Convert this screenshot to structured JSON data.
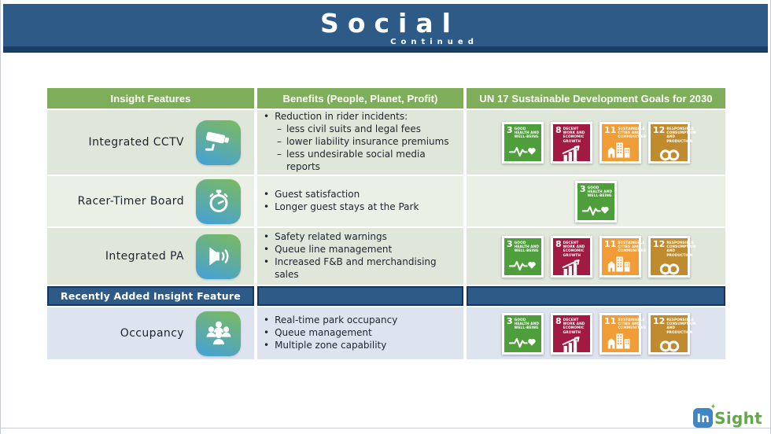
{
  "slide": {
    "title": "Social",
    "subtitle": "Continued"
  },
  "table": {
    "headers": [
      {
        "label": "Insight Features"
      },
      {
        "label": "Benefits (People, Planet, Profit)"
      },
      {
        "label": "UN 17 Sustainable Development Goals for 2030"
      }
    ],
    "rows": [
      {
        "feature": "Integrated CCTV",
        "icon": "cctv-camera-icon",
        "benefits": [
          {
            "text": "Reduction in rider incidents:",
            "subs": [
              "less civil suits and legal fees",
              "lower liability insurance premiums",
              "less undesirable social media reports"
            ]
          }
        ],
        "sdgs": [
          "3",
          "8",
          "11",
          "12"
        ]
      },
      {
        "feature": "Racer-Timer Board",
        "icon": "stopwatch-icon",
        "benefits": [
          {
            "text": "Guest satisfaction",
            "subs": []
          },
          {
            "text": "Longer guest stays at the Park",
            "subs": []
          }
        ],
        "sdgs": [
          "3"
        ]
      },
      {
        "feature": "Integrated PA",
        "icon": "speaker-icon",
        "benefits": [
          {
            "text": "Safety related warnings",
            "subs": []
          },
          {
            "text": "Queue line management",
            "subs": []
          },
          {
            "text": "Increased F&B and merchandising sales",
            "subs": []
          }
        ],
        "sdgs": [
          "3",
          "8",
          "11",
          "12"
        ]
      },
      {
        "feature": "Occupancy",
        "icon": "people-group-icon",
        "benefits": [
          {
            "text": "Real-time park occupancy",
            "subs": []
          },
          {
            "text": "Queue management",
            "subs": []
          },
          {
            "text": "Multiple zone capability",
            "subs": []
          }
        ],
        "sdgs": [
          "3",
          "8",
          "11",
          "12"
        ]
      }
    ],
    "section_header": "Recently Added Insight Feature"
  },
  "sdg_defs": {
    "3": {
      "number": "3",
      "label": "Good Health and Well-Being",
      "color": "#4f9e3c",
      "icon": "heartbeat-heart-icon"
    },
    "8": {
      "number": "8",
      "label": "Decent Work and Economic Growth",
      "color": "#a21942",
      "icon": "growth-chart-icon"
    },
    "11": {
      "number": "11",
      "label": "Sustainable Cities and Communities",
      "color": "#f09d38",
      "icon": "city-buildings-icon"
    },
    "12": {
      "number": "12",
      "label": "Responsible Consumption and Production",
      "color": "#bf8b2e",
      "icon": "infinity-icon"
    }
  },
  "logo": {
    "part1": "In",
    "part2": "Sight"
  },
  "colors": {
    "banner_blue": "#2d5a87",
    "banner_border": "#1d3c62",
    "header_green": "#7fae5b",
    "icon_grad_top": "#7cba5f",
    "icon_grad_bottom": "#43a0da"
  }
}
